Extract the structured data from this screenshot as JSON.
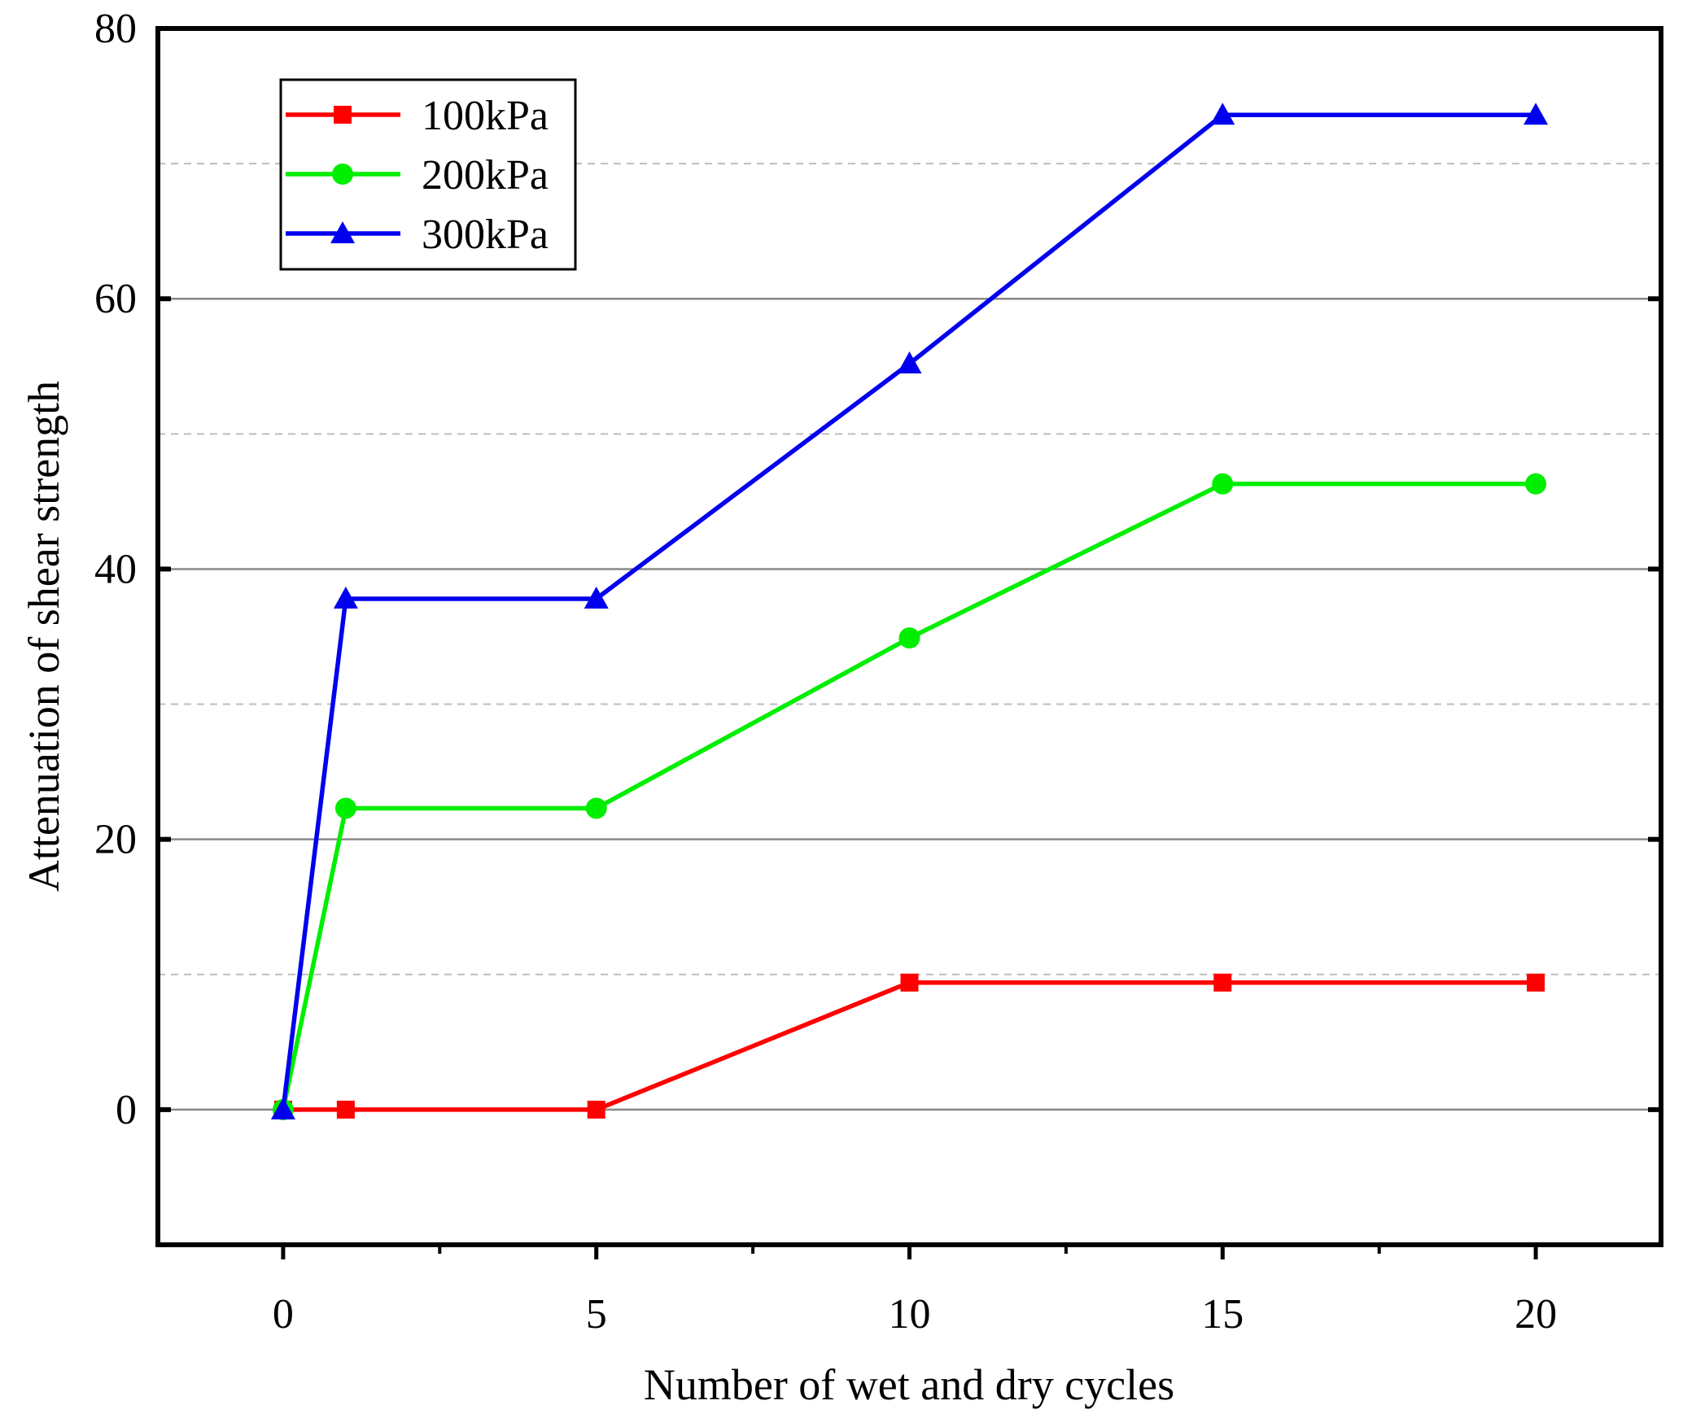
{
  "chart_data": {
    "type": "line",
    "title": "",
    "xlabel": "Number of wet and dry cycles",
    "ylabel": "Attenuation of shear strength",
    "xlim": [
      -2,
      22
    ],
    "ylim": [
      -10,
      80
    ],
    "x_ticks": [
      0,
      5,
      10,
      15,
      20
    ],
    "x_minor_ticks": [
      2.5,
      7.5,
      12.5,
      17.5
    ],
    "y_ticks": [
      0,
      20,
      40,
      60,
      80
    ],
    "y_minor_gridlines": [
      10,
      30,
      50,
      70
    ],
    "grid": true,
    "legend_position": "top-left",
    "x": [
      0,
      1,
      5,
      10,
      15,
      20
    ],
    "series": [
      {
        "name": "100kPa",
        "color": "#ff0000",
        "marker": "square",
        "values": [
          0,
          0,
          0,
          9.4,
          9.4,
          9.4
        ]
      },
      {
        "name": "200kPa",
        "color": "#00ee00",
        "marker": "circle",
        "values": [
          0,
          22.3,
          22.3,
          34.9,
          46.3,
          46.3
        ]
      },
      {
        "name": "300kPa",
        "color": "#0000ee",
        "marker": "triangle",
        "values": [
          0,
          37.8,
          37.8,
          55.2,
          73.6,
          73.6
        ]
      }
    ]
  }
}
